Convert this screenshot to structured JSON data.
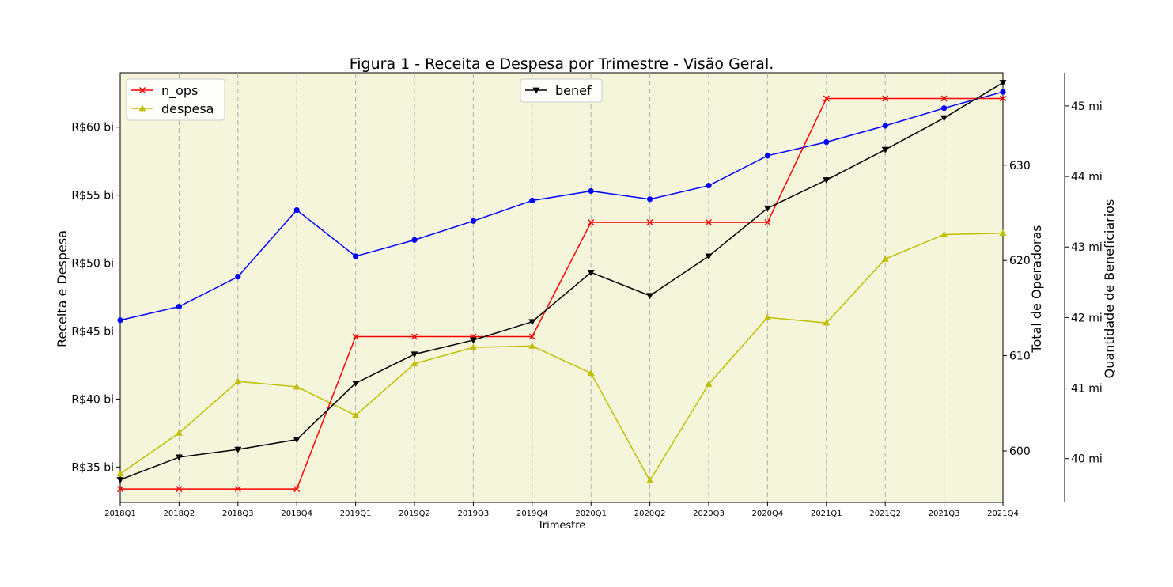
{
  "chart_data": {
    "type": "line",
    "title": "Figura 1 - Receita e Despesa por Trimestre - Visão Geral.",
    "xlabel": "Trimestre",
    "categories": [
      "2018Q1",
      "2018Q2",
      "2018Q3",
      "2018Q4",
      "2019Q1",
      "2019Q2",
      "2019Q3",
      "2019Q4",
      "2020Q1",
      "2020Q2",
      "2020Q3",
      "2020Q4",
      "2021Q1",
      "2021Q2",
      "2021Q3",
      "2021Q4"
    ],
    "background_color": "#f5f5dc",
    "grid": "vertical dashed",
    "axes": {
      "left": {
        "label": "Receita e Despesa",
        "unit": "R$ bi",
        "ylim": [
          32.4,
          64.0
        ],
        "ticks": [
          35,
          40,
          45,
          50,
          55,
          60
        ],
        "tick_labels": [
          "R$35 bi",
          "R$40 bi",
          "R$45 bi",
          "R$50 bi",
          "R$55 bi",
          "R$60 bi"
        ]
      },
      "right1": {
        "label": "Total de Operadoras",
        "ylim": [
          594.6,
          639.7
        ],
        "ticks": [
          600,
          610,
          620,
          630
        ],
        "tick_labels": [
          "600",
          "610",
          "620",
          "630"
        ]
      },
      "right2": {
        "label": "Quantidade de Beneficiarios",
        "unit": "mi",
        "ylim": [
          39.38,
          45.47
        ],
        "ticks": [
          40,
          41,
          42,
          43,
          44,
          45
        ],
        "tick_labels": [
          "40 mi",
          "41 mi",
          "42 mi",
          "43 mi",
          "44 mi",
          "45 mi"
        ]
      }
    },
    "series": [
      {
        "name": "",
        "axis": "left",
        "color": "#0000ff",
        "marker": "circle",
        "values": [
          45.8,
          46.8,
          49.0,
          53.9,
          50.5,
          51.7,
          53.1,
          54.6,
          55.3,
          54.7,
          55.7,
          57.9,
          58.9,
          60.1,
          61.4,
          62.6
        ]
      },
      {
        "name": "despesa",
        "axis": "left",
        "color": "#bfbf00",
        "marker": "triangle-up",
        "values": [
          34.5,
          37.5,
          41.3,
          40.9,
          38.8,
          42.6,
          43.8,
          43.9,
          41.9,
          34.0,
          41.1,
          46.0,
          45.6,
          50.3,
          52.1,
          52.2
        ]
      },
      {
        "name": "n_ops",
        "axis": "right1",
        "color": "#ff0000",
        "marker": "x",
        "values": [
          596,
          596,
          596,
          596,
          612,
          612,
          612,
          612,
          624,
          624,
          624,
          624,
          637,
          637,
          637,
          637
        ]
      },
      {
        "name": "benef",
        "axis": "right2",
        "color": "#000000",
        "marker": "triangle-down",
        "values": [
          39.7,
          40.02,
          40.13,
          40.27,
          41.07,
          41.48,
          41.68,
          41.94,
          42.64,
          42.31,
          42.87,
          43.55,
          43.95,
          44.38,
          44.83,
          45.33
        ]
      }
    ],
    "legends": [
      {
        "placement": "upper-left",
        "entries": [
          "n_ops",
          "despesa"
        ]
      },
      {
        "placement": "upper-center",
        "entries": [
          "benef"
        ]
      }
    ]
  }
}
